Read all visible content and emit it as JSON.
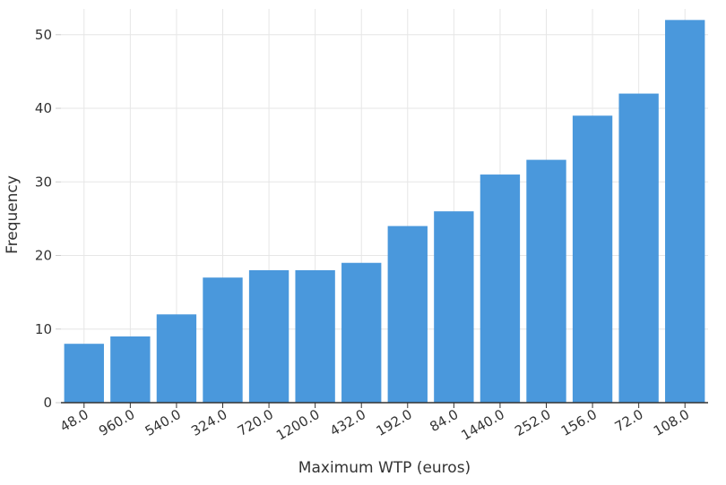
{
  "chart_data": {
    "type": "bar",
    "xlabel": "Maximum WTP (euros)",
    "ylabel": "Frequency",
    "categories": [
      "48.0",
      "960.0",
      "540.0",
      "324.0",
      "720.0",
      "1200.0",
      "432.0",
      "192.0",
      "84.0",
      "1440.0",
      "252.0",
      "156.0",
      "72.0",
      "108.0"
    ],
    "values": [
      8,
      9,
      12,
      17,
      18,
      18,
      19,
      24,
      26,
      31,
      33,
      39,
      42,
      52
    ],
    "ylim": [
      0,
      53.5
    ],
    "yticks": [
      0,
      10,
      20,
      30,
      40,
      50
    ],
    "grid": true,
    "bar_color": "#4a98dc",
    "grid_color": "#e6e6e6",
    "axis_color": "#333333"
  }
}
